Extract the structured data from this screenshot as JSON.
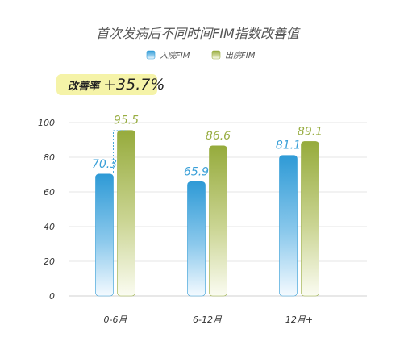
{
  "chart_data": {
    "type": "bar",
    "title": "首次发病后不同时间FIM指数改善值",
    "categories": [
      "0-6月",
      "6-12月",
      "12月+"
    ],
    "series": [
      {
        "name": "入院FIM",
        "values": [
          70.3,
          65.9,
          81.1
        ],
        "color": "#2e9ad6"
      },
      {
        "name": "出院FIM",
        "values": [
          95.5,
          86.6,
          89.1
        ],
        "color": "#96ab3c"
      }
    ],
    "value_labels": [
      [
        "70.3",
        "65.9",
        "81.1"
      ],
      [
        "95.5",
        "86.6",
        "89.1"
      ]
    ],
    "yticks": [
      "0",
      "20",
      "40",
      "60",
      "80",
      "100"
    ],
    "ylim": [
      0,
      100
    ],
    "grid": true,
    "legend_position": "top",
    "annotation": {
      "label": "改善率",
      "value": "+35.7%",
      "background": "#f5f3a8"
    }
  }
}
